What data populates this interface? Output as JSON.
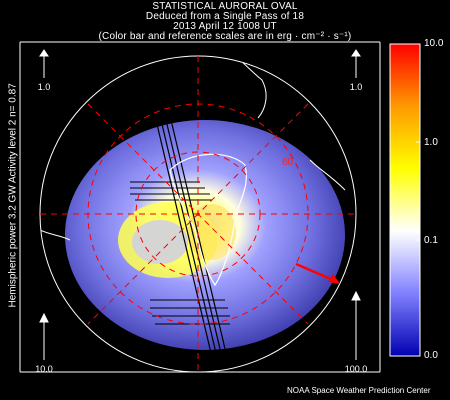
{
  "header": {
    "title": "STATISTICAL AURORAL OVAL",
    "line2": "Deduced from a Single Pass of 18",
    "line3": "2013 April 12 1008 UT",
    "line4": "(Color bar and reference scales are in erg · cm⁻² · s⁻¹)"
  },
  "side_label": "Hemispheric power  3.2 GW   Activity level 2   n=  0.87",
  "scales": {
    "top_left": "1.0",
    "top_right": "1.0",
    "bottom_left": "10.0",
    "bottom_right": "100.0"
  },
  "colorbar": {
    "ticks": [
      "10.0",
      "1.0",
      "0.1",
      "0.0"
    ],
    "colors": [
      "#ff0000",
      "#ffa000",
      "#ffff00",
      "#ffffff",
      "#8080ff",
      "#0000c0"
    ]
  },
  "map": {
    "latitude_label": "60",
    "sun_direction_color": "#ff0000",
    "grid_color": "#ff0000"
  },
  "footer": "NOAA Space Weather Prediction Center"
}
